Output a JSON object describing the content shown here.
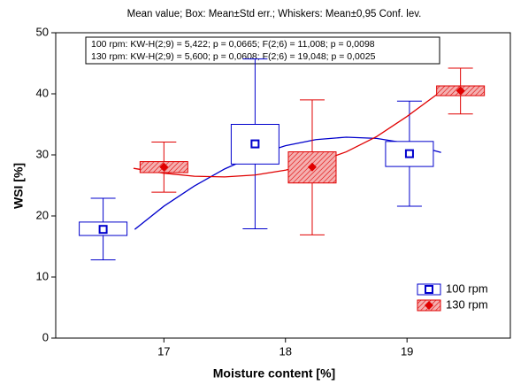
{
  "chart_data": {
    "type": "box",
    "title": "Mean value; Box: Mean±Std err.; Whiskers: Mean±0,95 Conf. lev.",
    "annotations": [
      "100 rpm:  KW-H(2;9) = 5,422; p = 0,0665;  F(2;6) = 11,008; p = 0,0098",
      "130 rpm:  KW-H(2;9) = 5,600; p = 0,0608;  F(2;6) = 19,048; p = 0,0025"
    ],
    "xlabel": "Moisture content [%]",
    "ylabel": "WSI [%]",
    "xlim": [
      16.11,
      19.85
    ],
    "xticks": [
      17,
      18,
      19
    ],
    "ylim": [
      0,
      50
    ],
    "yticks": [
      0,
      10,
      20,
      30,
      40,
      50
    ],
    "grid": false,
    "legend": "lower right",
    "series": [
      {
        "name": "100 rpm",
        "color": "#0000cc",
        "marker": "square",
        "box_fill": "none",
        "x": [
          16.5,
          17.75,
          19.02
        ],
        "mean": [
          17.8,
          31.8,
          30.2
        ],
        "box_low": [
          16.8,
          28.5,
          28.1
        ],
        "box_high": [
          19.0,
          35.0,
          32.2
        ],
        "whisker_low": [
          12.8,
          17.9,
          21.6
        ],
        "whisker_high": [
          22.9,
          45.7,
          38.8
        ],
        "fit_x": [
          16.76,
          17.0,
          17.25,
          17.5,
          17.75,
          18.0,
          18.25,
          18.5,
          18.75,
          19.0,
          19.28
        ],
        "fit_y": [
          17.8,
          21.6,
          24.9,
          27.7,
          29.9,
          31.5,
          32.5,
          32.9,
          32.7,
          31.9,
          30.4
        ]
      },
      {
        "name": "130 rpm",
        "color": "#e00000",
        "marker": "diamond",
        "box_fill": "hatch",
        "x": [
          17.0,
          18.22,
          19.44
        ],
        "mean": [
          28.0,
          28.0,
          40.5
        ],
        "box_low": [
          27.1,
          25.4,
          39.7
        ],
        "box_high": [
          28.9,
          30.5,
          41.3
        ],
        "whisker_low": [
          23.9,
          16.9,
          36.7
        ],
        "whisker_high": [
          32.1,
          39.0,
          44.2
        ],
        "fit_x": [
          16.75,
          17.0,
          17.25,
          17.5,
          17.75,
          18.0,
          18.25,
          18.5,
          18.75,
          19.0,
          19.28
        ],
        "fit_y": [
          27.8,
          27.0,
          26.5,
          26.4,
          26.7,
          27.5,
          28.7,
          30.5,
          33.0,
          36.3,
          40.4
        ]
      }
    ]
  }
}
